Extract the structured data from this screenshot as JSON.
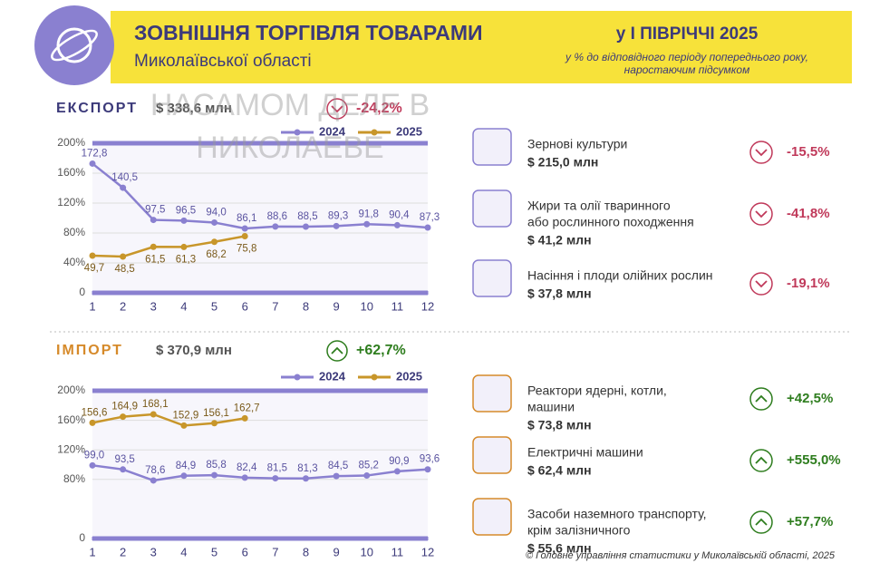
{
  "header": {
    "title": "ЗОВНІШНЯ ТОРГІВЛЯ ТОВАРАМИ",
    "region": "Миколаївської області",
    "period": "у І ПІВРІЧЧІ 2025",
    "note": [
      "у % до відповідного періоду попереднього року,",
      "наростаючим підсумком"
    ]
  },
  "watermark": [
    "НАСАМОМ ДЕЛЕ В",
    "НИКОЛАЕВЕ"
  ],
  "sections": [
    {
      "title": "ЕКСПОРТ",
      "total": "$ 338,6 млн",
      "change": "-24,2%",
      "color": "#c0395a",
      "title_color": "#3c3a7a",
      "items": [
        {
          "name": [
            "Зернові культури"
          ],
          "value": "$ 215,0 млн",
          "change": "-15,5%"
        },
        {
          "name": [
            "Жири та олії тваринного",
            "або рослинного походження"
          ],
          "value": "$ 41,2 млн",
          "change": "-41,8%"
        },
        {
          "name": [
            "Насіння і плоди олійних рослин"
          ],
          "value": "$ 37,8 млн",
          "change": "-19,1%"
        }
      ]
    },
    {
      "title": "ІМПОРТ",
      "total": "$ 370,9 млн",
      "change": "+62,7%",
      "color": "#2e7d1e",
      "title_color": "#d68a2a",
      "items": [
        {
          "name": [
            "Реактори ядерні, котли,",
            "машини"
          ],
          "value": "$ 73,8 млн",
          "change": "+42,5%"
        },
        {
          "name": [
            "Електричні машини"
          ],
          "value": "$ 62,4 млн",
          "change": "+555,0%"
        },
        {
          "name": [
            "Засоби наземного транспорту,",
            "крім залізничного"
          ],
          "value": "$ 55,6 млн",
          "change": "+57,7%"
        }
      ]
    }
  ],
  "chart_data": [
    {
      "type": "line",
      "x": [
        1,
        2,
        3,
        4,
        5,
        6,
        7,
        8,
        9,
        10,
        11,
        12
      ],
      "xlim": [
        1,
        12
      ],
      "xticks": [
        1,
        2,
        3,
        4,
        5,
        6,
        7,
        8,
        9,
        10,
        11,
        12
      ],
      "ylim": [
        0,
        200
      ],
      "yticks": [
        0,
        {
          "value": 40,
          "label": "40%"
        },
        {
          "value": 80,
          "label": "80%"
        },
        {
          "value": 120,
          "label": "120%"
        },
        {
          "value": 160,
          "label": "160%"
        },
        {
          "value": 200,
          "label": "200%"
        }
      ],
      "grid": true,
      "series": [
        {
          "name": "2024",
          "color": "#8a80d0",
          "values": [
            172.8,
            140.5,
            97.5,
            96.5,
            94.0,
            86.1,
            88.6,
            88.5,
            89.3,
            91.8,
            90.4,
            87.3
          ],
          "value_labels": [
            "172,8",
            "140,5",
            "97,5",
            "96,5",
            "94,0",
            "86,1",
            "88,6",
            "88,5",
            "89,3",
            "91,8",
            "90,4",
            "87,3"
          ]
        },
        {
          "name": "2025",
          "color": "#c8962a",
          "values": [
            49.7,
            48.5,
            61.5,
            61.3,
            68.2,
            75.8,
            null,
            null,
            null,
            null,
            null,
            null
          ],
          "value_labels": [
            "49,7",
            "48,5",
            "61,5",
            "61,3",
            "68,2",
            "75,8",
            null,
            null,
            null,
            null,
            null,
            null
          ]
        }
      ]
    },
    {
      "type": "line",
      "x": [
        1,
        2,
        3,
        4,
        5,
        6,
        7,
        8,
        9,
        10,
        11,
        12
      ],
      "xlim": [
        1,
        12
      ],
      "xticks": [
        1,
        2,
        3,
        4,
        5,
        6,
        7,
        8,
        9,
        10,
        11,
        12
      ],
      "ylim": [
        0,
        200
      ],
      "yticks": [
        0,
        {
          "value": 80,
          "label": "80%"
        },
        {
          "value": 120,
          "label": "120%"
        },
        {
          "value": 160,
          "label": "160%"
        },
        {
          "value": 200,
          "label": "200%"
        }
      ],
      "grid": true,
      "series": [
        {
          "name": "2024",
          "color": "#8a80d0",
          "values": [
            99.0,
            93.5,
            78.6,
            84.9,
            85.8,
            82.4,
            81.5,
            81.3,
            84.5,
            85.2,
            90.9,
            93.6
          ],
          "value_labels": [
            "99,0",
            "93,5",
            "78,6",
            "84,9",
            "85,8",
            "82,4",
            "81,5",
            "81,3",
            "84,5",
            "85,2",
            "90,9",
            "93,6"
          ]
        },
        {
          "name": "2025",
          "color": "#c8962a",
          "values": [
            156.6,
            164.9,
            168.1,
            152.9,
            156.1,
            162.7,
            null,
            null,
            null,
            null,
            null,
            null
          ],
          "value_labels": [
            "156,6",
            "164,9",
            "168,1",
            "152,9",
            "156,1",
            "162,7",
            null,
            null,
            null,
            null,
            null,
            null
          ]
        }
      ]
    }
  ],
  "footer": "© Головне управління статистики у Миколаївській області, 2025"
}
